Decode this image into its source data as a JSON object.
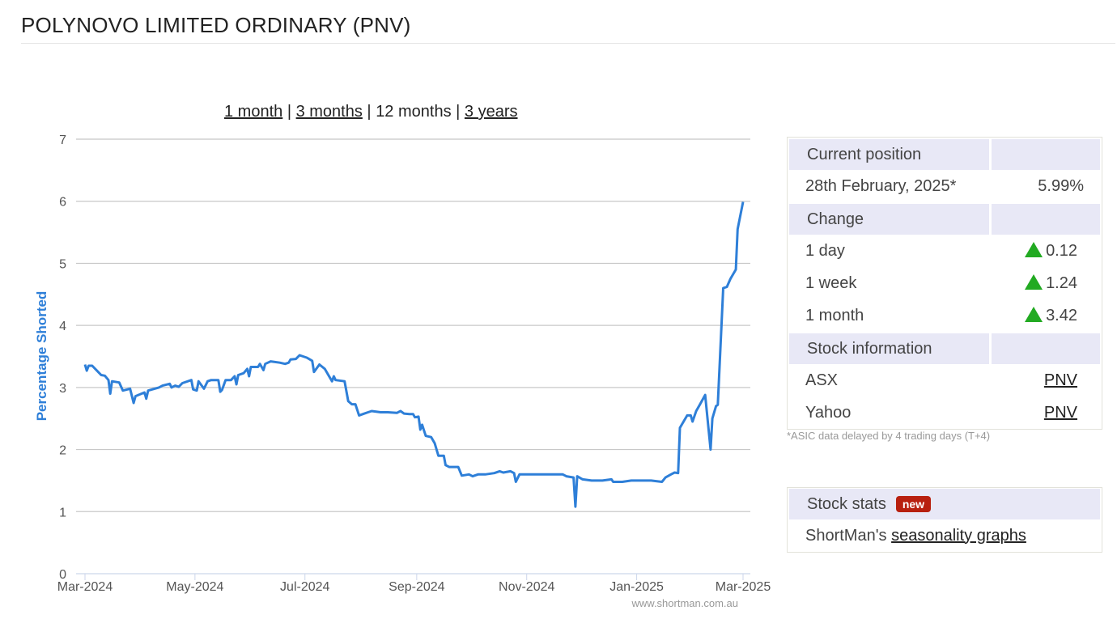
{
  "title": "POLYNOVO LIMITED ORDINARY (PNV)",
  "ranges": [
    {
      "label": "1 month",
      "link": true
    },
    {
      "label": "3 months",
      "link": true
    },
    {
      "label": "12 months",
      "link": false
    },
    {
      "label": "3 years",
      "link": true
    }
  ],
  "separator": "|",
  "position": {
    "header": "Current position",
    "date": "28th February, 2025*",
    "value": "5.99%"
  },
  "change": {
    "header": "Change",
    "rows": [
      {
        "label": "1 day",
        "value": "0.12",
        "direction": "up"
      },
      {
        "label": "1 week",
        "value": "1.24",
        "direction": "up"
      },
      {
        "label": "1 month",
        "value": "3.42",
        "direction": "up"
      }
    ]
  },
  "stock_info": {
    "header": "Stock information",
    "rows": [
      {
        "label": "ASX",
        "value": "PNV"
      },
      {
        "label": "Yahoo",
        "value": "PNV"
      }
    ]
  },
  "note": "*ASIC data delayed by 4 trading days (T+4)",
  "stats": {
    "header": "Stock stats",
    "badge": "new",
    "prefix": "ShortMan's ",
    "link": "seasonality graphs"
  },
  "colors": {
    "line": "#2e7fd8",
    "up": "#22aa22",
    "header_bg": "#e8e8f6",
    "badge": "#b8200f"
  },
  "chart_data": {
    "type": "line",
    "title": "",
    "xlabel": "",
    "ylabel": "Percentage Shorted",
    "credit": "www.shortman.com.au",
    "x_start": "2024-03-01",
    "x_unit": "days since 2024-03-01",
    "xlim": [
      0,
      365
    ],
    "ylim": [
      0,
      7
    ],
    "yticks": [
      0,
      1,
      2,
      3,
      4,
      5,
      6,
      7
    ],
    "xticks": [
      {
        "day": 0,
        "label": "Mar-2024"
      },
      {
        "day": 61,
        "label": "May-2024"
      },
      {
        "day": 122,
        "label": "Jul-2024"
      },
      {
        "day": 184,
        "label": "Sep-2024"
      },
      {
        "day": 245,
        "label": "Nov-2024"
      },
      {
        "day": 306,
        "label": "Jan-2025"
      },
      {
        "day": 365,
        "label": "Mar-2025"
      }
    ],
    "grid": true,
    "series": [
      {
        "name": "PNV",
        "points": [
          [
            0,
            3.37
          ],
          [
            1,
            3.27
          ],
          [
            2,
            3.35
          ],
          [
            4,
            3.35
          ],
          [
            7,
            3.26
          ],
          [
            9,
            3.2
          ],
          [
            11,
            3.19
          ],
          [
            13,
            3.12
          ],
          [
            14,
            2.9
          ],
          [
            15,
            3.1
          ],
          [
            19,
            3.08
          ],
          [
            21,
            2.95
          ],
          [
            25,
            2.98
          ],
          [
            27,
            2.75
          ],
          [
            28,
            2.86
          ],
          [
            33,
            2.92
          ],
          [
            34,
            2.82
          ],
          [
            35,
            2.95
          ],
          [
            41,
            3.0
          ],
          [
            43,
            3.03
          ],
          [
            47,
            3.06
          ],
          [
            48,
            3.0
          ],
          [
            50,
            3.03
          ],
          [
            52,
            3.01
          ],
          [
            54,
            3.07
          ],
          [
            59,
            3.12
          ],
          [
            60,
            2.97
          ],
          [
            62,
            2.95
          ],
          [
            63,
            3.1
          ],
          [
            66,
            2.98
          ],
          [
            68,
            3.1
          ],
          [
            70,
            3.12
          ],
          [
            74,
            3.12
          ],
          [
            75,
            2.93
          ],
          [
            76,
            2.96
          ],
          [
            78,
            3.12
          ],
          [
            81,
            3.12
          ],
          [
            83,
            3.18
          ],
          [
            84,
            3.05
          ],
          [
            85,
            3.2
          ],
          [
            88,
            3.23
          ],
          [
            90,
            3.3
          ],
          [
            91,
            3.18
          ],
          [
            92,
            3.33
          ],
          [
            96,
            3.33
          ],
          [
            97,
            3.38
          ],
          [
            99,
            3.28
          ],
          [
            100,
            3.38
          ],
          [
            103,
            3.42
          ],
          [
            108,
            3.4
          ],
          [
            111,
            3.38
          ],
          [
            113,
            3.4
          ],
          [
            114,
            3.45
          ],
          [
            117,
            3.46
          ],
          [
            119,
            3.52
          ],
          [
            121,
            3.5
          ],
          [
            123,
            3.48
          ],
          [
            126,
            3.43
          ],
          [
            127,
            3.25
          ],
          [
            130,
            3.37
          ],
          [
            133,
            3.3
          ],
          [
            137,
            3.1
          ],
          [
            138,
            3.18
          ],
          [
            139,
            3.12
          ],
          [
            144,
            3.1
          ],
          [
            146,
            2.78
          ],
          [
            148,
            2.73
          ],
          [
            150,
            2.73
          ],
          [
            152,
            2.55
          ],
          [
            155,
            2.58
          ],
          [
            157,
            2.6
          ],
          [
            159,
            2.62
          ],
          [
            164,
            2.6
          ],
          [
            168,
            2.6
          ],
          [
            173,
            2.59
          ],
          [
            175,
            2.62
          ],
          [
            177,
            2.58
          ],
          [
            180,
            2.57
          ],
          [
            182,
            2.57
          ],
          [
            183,
            2.52
          ],
          [
            185,
            2.53
          ],
          [
            186,
            2.32
          ],
          [
            187,
            2.4
          ],
          [
            189,
            2.22
          ],
          [
            192,
            2.2
          ],
          [
            194,
            2.1
          ],
          [
            196,
            1.9
          ],
          [
            199,
            1.9
          ],
          [
            200,
            1.75
          ],
          [
            202,
            1.72
          ],
          [
            207,
            1.72
          ],
          [
            209,
            1.58
          ],
          [
            213,
            1.6
          ],
          [
            215,
            1.57
          ],
          [
            218,
            1.6
          ],
          [
            222,
            1.6
          ],
          [
            227,
            1.62
          ],
          [
            230,
            1.65
          ],
          [
            232,
            1.63
          ],
          [
            236,
            1.65
          ],
          [
            238,
            1.62
          ],
          [
            239,
            1.48
          ],
          [
            241,
            1.6
          ],
          [
            245,
            1.6
          ],
          [
            251,
            1.6
          ],
          [
            258,
            1.6
          ],
          [
            265,
            1.6
          ],
          [
            267,
            1.57
          ],
          [
            271,
            1.55
          ],
          [
            272,
            1.08
          ],
          [
            273,
            1.57
          ],
          [
            276,
            1.52
          ],
          [
            281,
            1.5
          ],
          [
            287,
            1.5
          ],
          [
            292,
            1.52
          ],
          [
            293,
            1.48
          ],
          [
            298,
            1.48
          ],
          [
            303,
            1.5
          ],
          [
            307,
            1.5
          ],
          [
            314,
            1.5
          ],
          [
            320,
            1.48
          ],
          [
            322,
            1.55
          ],
          [
            325,
            1.6
          ],
          [
            327,
            1.63
          ],
          [
            329,
            1.62
          ],
          [
            330,
            2.35
          ],
          [
            332,
            2.45
          ],
          [
            334,
            2.55
          ],
          [
            336,
            2.55
          ],
          [
            337,
            2.45
          ],
          [
            339,
            2.62
          ],
          [
            341,
            2.72
          ],
          [
            344,
            2.88
          ],
          [
            347,
            2.0
          ],
          [
            348,
            2.5
          ],
          [
            350,
            2.7
          ],
          [
            351,
            2.72
          ],
          [
            354,
            4.6
          ],
          [
            356,
            4.62
          ],
          [
            358,
            4.75
          ],
          [
            361,
            4.9
          ],
          [
            362,
            5.55
          ],
          [
            365,
            5.99
          ]
        ]
      }
    ]
  }
}
